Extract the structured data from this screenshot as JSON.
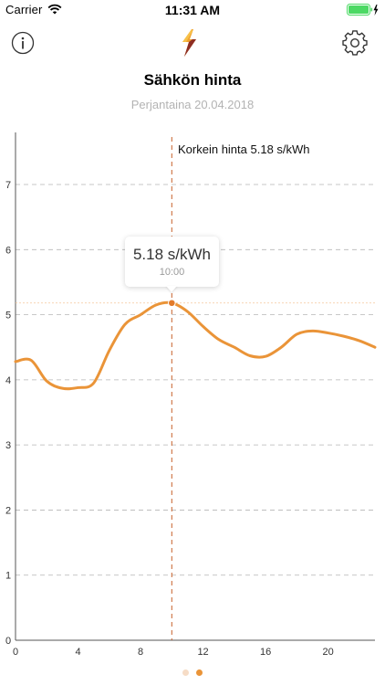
{
  "status_bar": {
    "carrier": "Carrier",
    "time": "11:31 AM",
    "wifi_icon": "wifi-icon",
    "battery_icon": "battery-charging-icon",
    "battery_level": 1.0
  },
  "nav": {
    "info_icon": "info-icon",
    "logo_icon": "lightning-logo-icon",
    "settings_icon": "gear-icon"
  },
  "header": {
    "title": "Sähkön hinta",
    "date": "Perjantaina 20.04.2018"
  },
  "tooltip": {
    "value": "5.18 s/kWh",
    "time": "10:00"
  },
  "colors": {
    "accent": "#ea9438",
    "marker_line": "#c8602a",
    "grid": "#b5b5b5",
    "axis_text": "#333333",
    "dot_inactive": "#f6dcc6",
    "dot_active": "#ea9438"
  },
  "pager": {
    "pages": 2,
    "active": 1
  },
  "chart_data": {
    "type": "line",
    "annotation": "Korkein hinta 5.18 s/kWh",
    "highlight": {
      "x": 10,
      "y": 5.18
    },
    "x_ticks": [
      "0",
      "4",
      "8",
      "12",
      "16",
      "20"
    ],
    "y_ticks": [
      "0",
      "1",
      "2",
      "3",
      "4",
      "5",
      "6",
      "7"
    ],
    "xlim": [
      0,
      23
    ],
    "ylim": [
      0,
      7.8
    ],
    "grid": true,
    "series": [
      {
        "x": [
          0,
          1,
          2,
          3,
          4,
          5,
          6,
          7,
          8,
          9,
          10,
          11,
          12,
          13,
          14,
          15,
          16,
          17,
          18,
          19,
          20,
          21,
          22,
          23
        ],
        "values": [
          4.28,
          4.3,
          3.98,
          3.87,
          3.88,
          3.95,
          4.45,
          4.85,
          5.0,
          5.15,
          5.18,
          5.05,
          4.82,
          4.62,
          4.5,
          4.37,
          4.36,
          4.5,
          4.7,
          4.75,
          4.72,
          4.67,
          4.6,
          4.5
        ]
      }
    ]
  }
}
